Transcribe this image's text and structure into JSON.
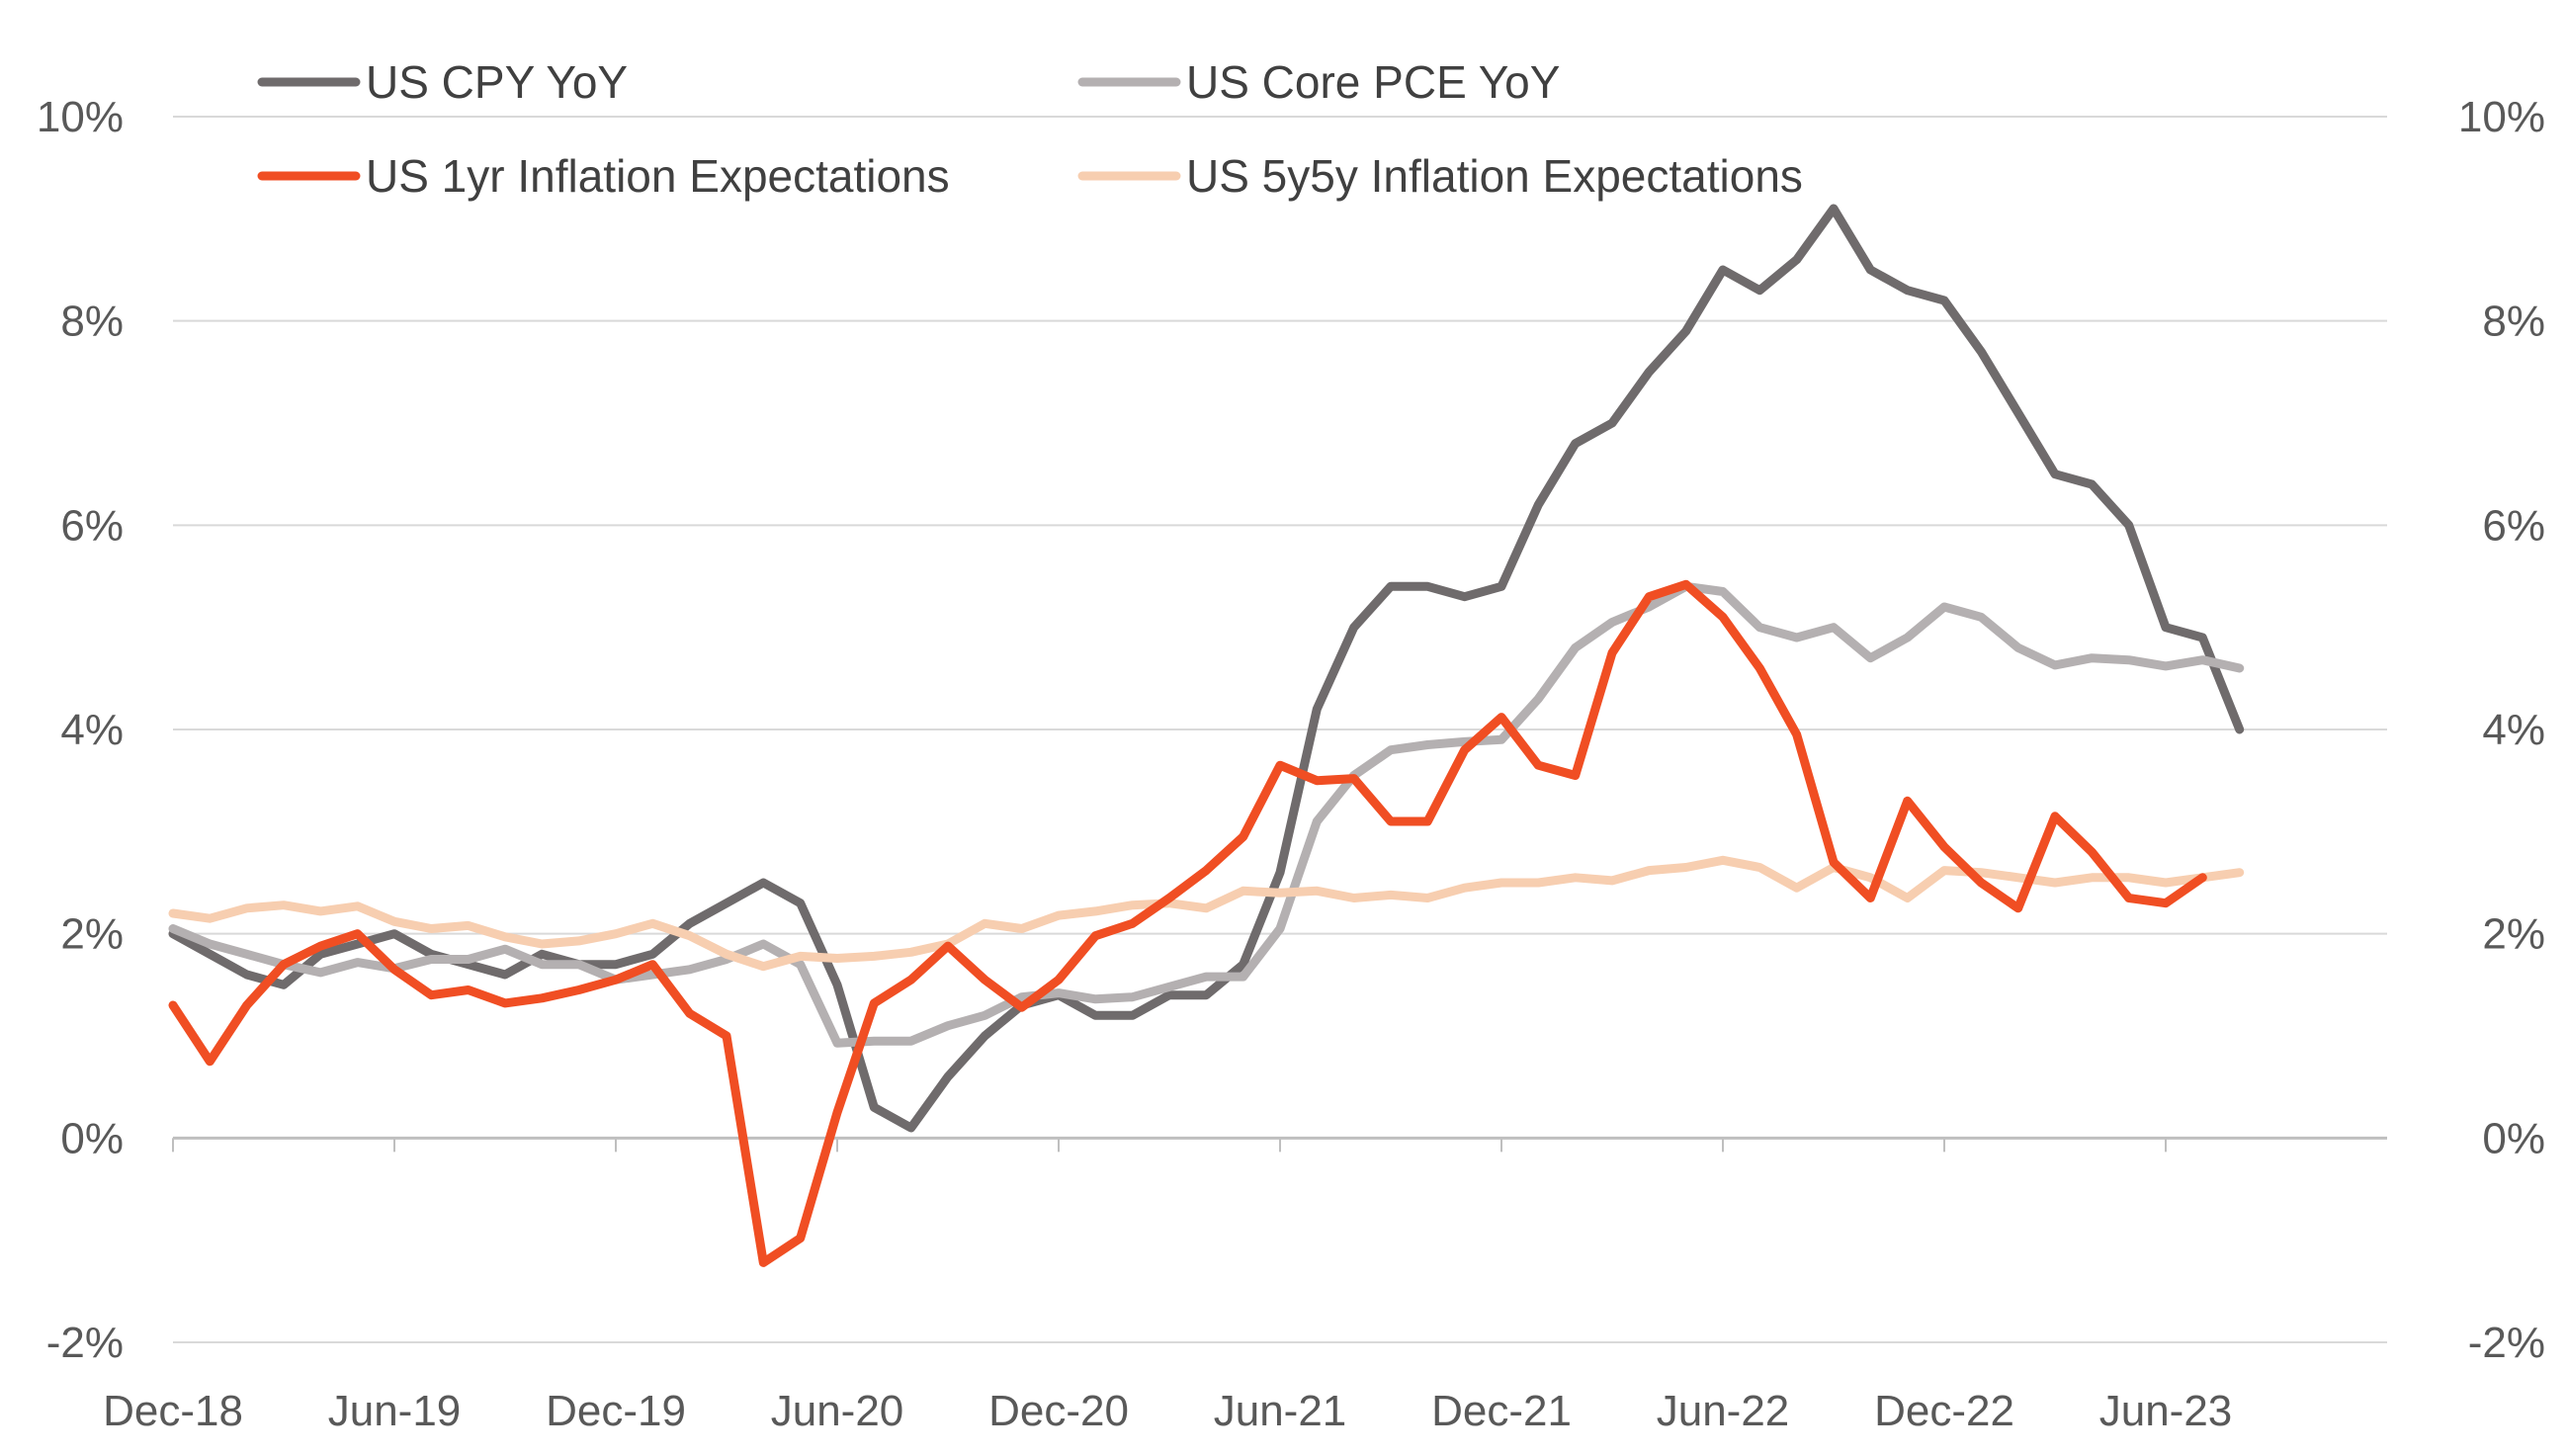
{
  "chart_data": {
    "type": "line",
    "title": "",
    "xlabel": "",
    "ylabel": "",
    "ylim": [
      -2,
      10
    ],
    "y_ticks": [
      "-2%",
      "0%",
      "2%",
      "4%",
      "6%",
      "8%",
      "10%"
    ],
    "y_tick_values": [
      -2,
      0,
      2,
      4,
      6,
      8,
      10
    ],
    "secondary_y_ticks": [
      "-2%",
      "0%",
      "2%",
      "4%",
      "6%",
      "8%",
      "10%"
    ],
    "x_tick_labels": [
      "Dec-18",
      "Jun-19",
      "Dec-19",
      "Jun-20",
      "Dec-20",
      "Jun-21",
      "Dec-21",
      "Jun-22",
      "Dec-22",
      "Jun-23"
    ],
    "x_tick_months": [
      0,
      6,
      12,
      18,
      24,
      30,
      36,
      42,
      48,
      54
    ],
    "x_range_months": [
      0,
      60
    ],
    "grid": "horizontal",
    "legend": "top",
    "series": [
      {
        "name": "US CPY YoY",
        "color": "#6f6b6c",
        "start_month": 0,
        "values": [
          2.0,
          1.8,
          1.6,
          1.5,
          1.8,
          1.9,
          2.0,
          1.8,
          1.7,
          1.6,
          1.8,
          1.7,
          1.7,
          1.8,
          2.1,
          2.3,
          2.5,
          2.3,
          1.5,
          0.3,
          0.1,
          0.6,
          1.0,
          1.3,
          1.4,
          1.2,
          1.2,
          1.4,
          1.4,
          1.7,
          2.6,
          4.2,
          5.0,
          5.4,
          5.4,
          5.3,
          5.4,
          6.2,
          6.8,
          7.0,
          7.5,
          7.9,
          8.5,
          8.3,
          8.6,
          9.1,
          8.5,
          8.3,
          8.2,
          7.7,
          7.1,
          6.5,
          6.4,
          6.0,
          5.0,
          4.9,
          4.0
        ]
      },
      {
        "name": "US Core PCE YoY",
        "color": "#b4b0b1",
        "start_month": 0,
        "values": [
          2.05,
          1.9,
          1.8,
          1.7,
          1.62,
          1.72,
          1.66,
          1.75,
          1.75,
          1.85,
          1.7,
          1.7,
          1.55,
          1.6,
          1.65,
          1.75,
          1.9,
          1.7,
          0.93,
          0.95,
          0.95,
          1.1,
          1.2,
          1.38,
          1.42,
          1.36,
          1.38,
          1.48,
          1.58,
          1.58,
          2.05,
          3.1,
          3.55,
          3.8,
          3.85,
          3.88,
          3.9,
          4.3,
          4.8,
          5.05,
          5.2,
          5.4,
          5.35,
          5.0,
          4.9,
          5.0,
          4.7,
          4.9,
          5.2,
          5.1,
          4.8,
          4.63,
          4.7,
          4.68,
          4.62,
          4.68,
          4.6
        ]
      },
      {
        "name": "US 1yr Inflation Expectations",
        "color": "#f04e23",
        "start_month": 0,
        "values": [
          1.3,
          0.75,
          1.3,
          1.7,
          1.88,
          2.0,
          1.65,
          1.4,
          1.45,
          1.32,
          1.37,
          1.45,
          1.55,
          1.7,
          1.22,
          1.0,
          -1.22,
          -0.98,
          0.25,
          1.32,
          1.55,
          1.88,
          1.55,
          1.28,
          1.55,
          1.98,
          2.1,
          2.35,
          2.62,
          2.95,
          3.65,
          3.5,
          3.52,
          3.1,
          3.1,
          3.8,
          4.12,
          3.65,
          3.55,
          4.75,
          5.3,
          5.42,
          5.1,
          4.6,
          3.95,
          2.7,
          2.35,
          3.3,
          2.85,
          2.5,
          2.25,
          3.15,
          2.8,
          2.35,
          2.3,
          2.55
        ]
      },
      {
        "name": "US 5y5y Inflation Expectations",
        "color": "#f7ceb0",
        "start_month": 0,
        "values": [
          2.2,
          2.15,
          2.25,
          2.28,
          2.22,
          2.27,
          2.12,
          2.05,
          2.08,
          1.97,
          1.9,
          1.93,
          2.0,
          2.1,
          1.98,
          1.8,
          1.68,
          1.78,
          1.76,
          1.78,
          1.82,
          1.9,
          2.1,
          2.05,
          2.18,
          2.22,
          2.28,
          2.3,
          2.25,
          2.42,
          2.4,
          2.42,
          2.35,
          2.38,
          2.35,
          2.45,
          2.5,
          2.5,
          2.55,
          2.52,
          2.62,
          2.65,
          2.72,
          2.65,
          2.45,
          2.65,
          2.55,
          2.35,
          2.62,
          2.6,
          2.55,
          2.5,
          2.55,
          2.55,
          2.5,
          2.55,
          2.6
        ]
      }
    ]
  }
}
